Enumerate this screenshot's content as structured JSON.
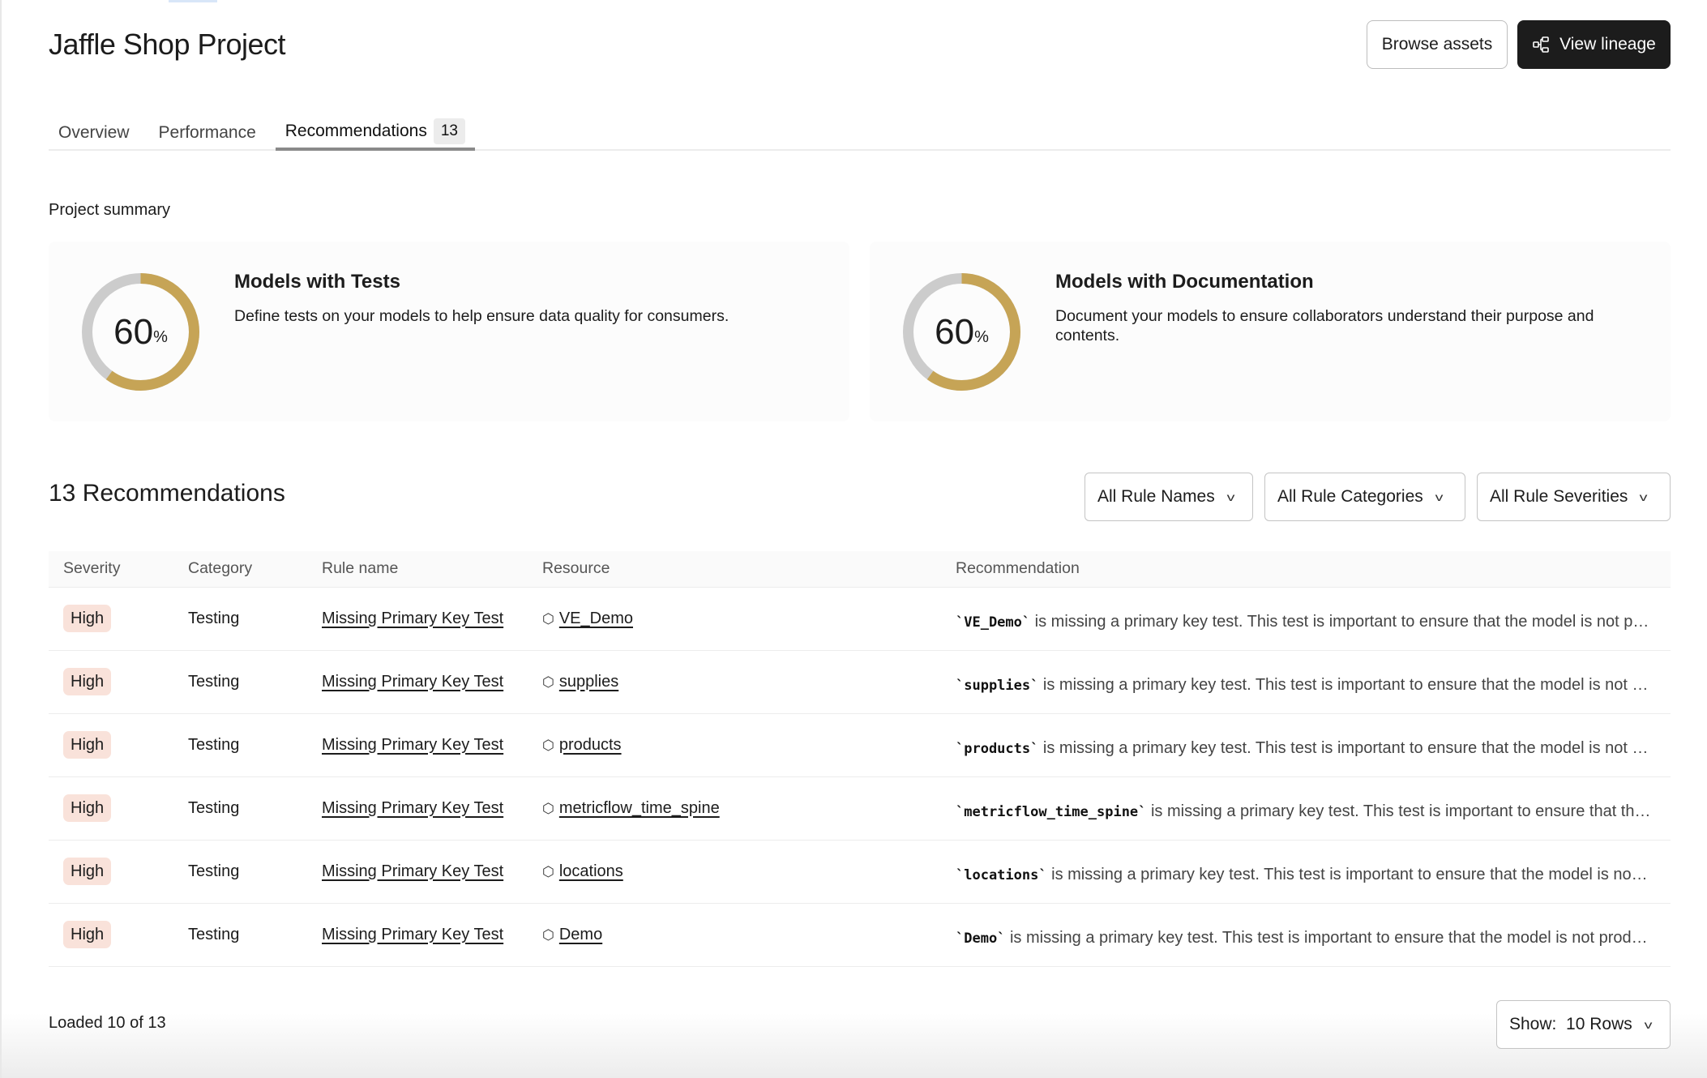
{
  "header": {
    "title": "Jaffle Shop Project",
    "browse_label": "Browse assets",
    "lineage_label": "View lineage"
  },
  "tabs": [
    {
      "label": "Overview"
    },
    {
      "label": "Performance"
    },
    {
      "label": "Recommendations",
      "count": "13",
      "active": true
    }
  ],
  "summary": {
    "label": "Project summary",
    "cards": [
      {
        "title": "Models with Tests",
        "description": "Define tests on your models to help ensure data quality for consumers.",
        "percent": 60,
        "value": "60",
        "unit": "%"
      },
      {
        "title": "Models with Documentation",
        "description": "Document your models to ensure collaborators understand their purpose and contents.",
        "percent": 60,
        "value": "60",
        "unit": "%"
      }
    ]
  },
  "colors": {
    "progress": "#C6A456",
    "track": "#CCCCCC",
    "badge_high": "#F9E2DA",
    "primary_button": "#1C1C1C"
  },
  "recommendations": {
    "title": "13 Recommendations",
    "filters": [
      "All Rule Names",
      "All Rule Categories",
      "All Rule Severities"
    ],
    "columns": [
      "Severity",
      "Category",
      "Rule name",
      "Resource",
      "Recommendation"
    ],
    "rows": [
      {
        "severity": "High",
        "category": "Testing",
        "rule": "Missing Primary Key Test",
        "resource": "VE_Demo",
        "code": "`VE_Demo`",
        "text": " is missing a primary key test. This test is important to ensure that the model is not producing duplicate rows"
      },
      {
        "severity": "High",
        "category": "Testing",
        "rule": "Missing Primary Key Test",
        "resource": "supplies",
        "code": "`supplies`",
        "text": " is missing a primary key test. This test is important to ensure that the model is not producing duplicate rows"
      },
      {
        "severity": "High",
        "category": "Testing",
        "rule": "Missing Primary Key Test",
        "resource": "products",
        "code": "`products`",
        "text": " is missing a primary key test. This test is important to ensure that the model is not producing duplicate rows"
      },
      {
        "severity": "High",
        "category": "Testing",
        "rule": "Missing Primary Key Test",
        "resource": "metricflow_time_spine",
        "code": "`metricflow_time_spine`",
        "text": " is missing a primary key test. This test is important to ensure that the model is not producing duplicate rows"
      },
      {
        "severity": "High",
        "category": "Testing",
        "rule": "Missing Primary Key Test",
        "resource": "locations",
        "code": "`locations`",
        "text": " is missing a primary key test. This test is important to ensure that the model is not producing duplicate rows"
      },
      {
        "severity": "High",
        "category": "Testing",
        "rule": "Missing Primary Key Test",
        "resource": "Demo",
        "code": "`Demo`",
        "text": " is missing a primary key test. This test is important to ensure that the model is not producing duplicate rows"
      }
    ],
    "loaded": "Loaded 10 of 13",
    "show_label": "Show:",
    "show_value": "10 Rows"
  }
}
